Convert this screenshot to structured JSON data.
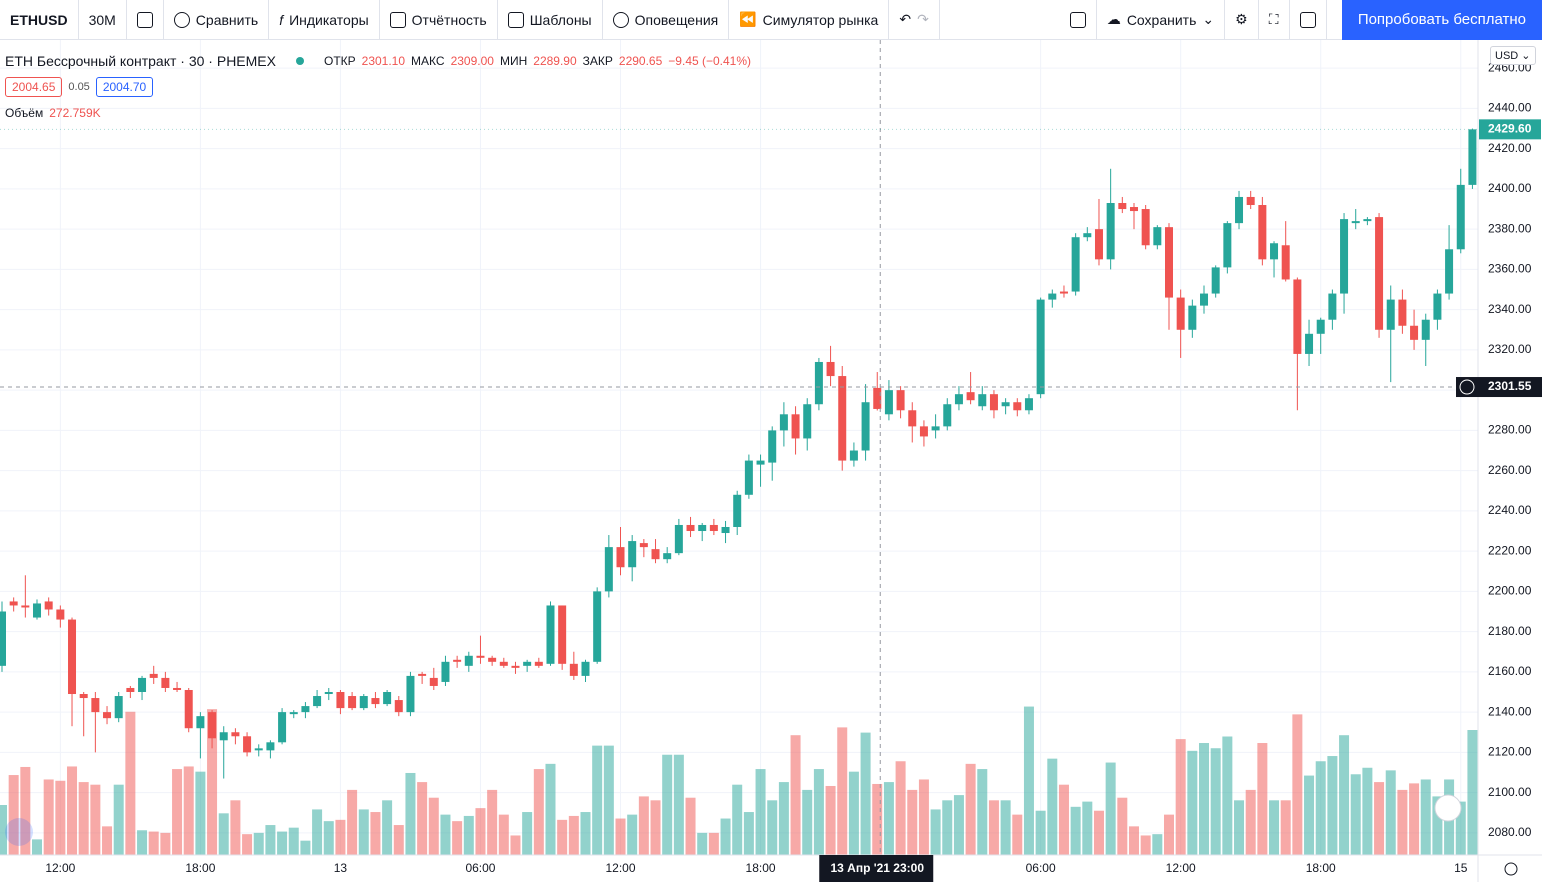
{
  "toolbar": {
    "symbol": "ETHUSD",
    "interval": "30М",
    "compare": "Сравнить",
    "indicators": "Индикаторы",
    "financials": "Отчётность",
    "templates": "Шаблоны",
    "alerts": "Оповещения",
    "replay": "Симулятор рынка",
    "save": "Сохранить",
    "trial": "Попробовать бесплатно"
  },
  "legend": {
    "title": "ETH Бессрочный контракт · 30 · PHEMEX",
    "open_label": "ОТКР",
    "open": "2301.10",
    "high_label": "МАКС",
    "high": "2309.00",
    "low_label": "МИН",
    "low": "2289.90",
    "close_label": "ЗАКР",
    "close": "2290.65",
    "change": "−9.45 (−0.41%)",
    "bid": "2004.65",
    "spread": "0.05",
    "ask": "2004.70",
    "volume_label": "Объём",
    "volume": "272.759K"
  },
  "chart": {
    "type": "candlestick",
    "currency": "USD",
    "up_color": "#26a69a",
    "down_color": "#ef5350",
    "grid": true,
    "ylim": [
      2069,
      2474
    ],
    "yticks": [
      {
        "value": 2080,
        "label": "2080.00"
      },
      {
        "value": 2100,
        "label": "2100.00"
      },
      {
        "value": 2120,
        "label": "2120.00"
      },
      {
        "value": 2140,
        "label": "2140.00"
      },
      {
        "value": 2160,
        "label": "2160.00"
      },
      {
        "value": 2180,
        "label": "2180.00"
      },
      {
        "value": 2200,
        "label": "2200.00"
      },
      {
        "value": 2220,
        "label": "2220.00"
      },
      {
        "value": 2240,
        "label": "2240.00"
      },
      {
        "value": 2260,
        "label": "2260.00"
      },
      {
        "value": 2280,
        "label": "2280.00"
      },
      {
        "value": 2300,
        "label": "2300.00"
      },
      {
        "value": 2320,
        "label": "2320.00"
      },
      {
        "value": 2340,
        "label": "2340.00"
      },
      {
        "value": 2360,
        "label": "2360.00"
      },
      {
        "value": 2380,
        "label": "2380.00"
      },
      {
        "value": 2400,
        "label": "2400.00"
      },
      {
        "value": 2420,
        "label": "2420.00"
      },
      {
        "value": 2440,
        "label": "2440.00"
      },
      {
        "value": 2460,
        "label": "2460.00"
      }
    ],
    "last_price_label": "2429.60",
    "crosshair_price": {
      "value": 2301.55,
      "label": "2301.55"
    },
    "crosshair_time": "13 Апр '21  23:00",
    "x_labels": [
      null,
      null,
      null,
      null,
      null,
      "12:00",
      null,
      null,
      null,
      null,
      null,
      null,
      null,
      null,
      null,
      null,
      null,
      "18:00",
      null,
      null,
      null,
      null,
      null,
      null,
      null,
      null,
      null,
      null,
      null,
      "13",
      null,
      null,
      null,
      null,
      null,
      null,
      null,
      null,
      null,
      null,
      null,
      "06:00",
      null,
      null,
      null,
      null,
      null,
      null,
      null,
      null,
      null,
      null,
      null,
      "12:00",
      null,
      null,
      null,
      null,
      null,
      null,
      null,
      null,
      null,
      null,
      null,
      "18:00",
      null,
      null,
      null,
      null,
      null,
      null,
      null,
      null,
      null,
      null,
      null,
      null,
      null,
      null,
      null,
      null,
      null,
      null,
      null,
      null,
      null,
      null,
      null,
      "06:00",
      null,
      null,
      null,
      null,
      null,
      null,
      null,
      null,
      null,
      null,
      null,
      "12:00",
      null,
      null,
      null,
      null,
      null,
      null,
      null,
      null,
      null,
      null,
      null,
      "18:00",
      null,
      null,
      null,
      null,
      null,
      null,
      null,
      null,
      null,
      null,
      null,
      "15",
      null
    ],
    "candles": [
      [
        2163,
        2195,
        2160,
        2190
      ],
      [
        2195,
        2197,
        2190,
        2193
      ],
      [
        2193,
        2208,
        2187,
        2192
      ],
      [
        2187,
        2196,
        2186,
        2194
      ],
      [
        2195,
        2197,
        2188,
        2191
      ],
      [
        2191,
        2193,
        2182,
        2186
      ],
      [
        2186,
        2187,
        2133,
        2149
      ],
      [
        2149,
        2150,
        2128,
        2147
      ],
      [
        2147,
        2150,
        2120,
        2140
      ],
      [
        2140,
        2143,
        2134,
        2137
      ],
      [
        2137,
        2150,
        2135,
        2148
      ],
      [
        2152,
        2153,
        2147,
        2150
      ],
      [
        2150,
        2158,
        2146,
        2157
      ],
      [
        2159,
        2163,
        2154,
        2157
      ],
      [
        2157,
        2160,
        2150,
        2152
      ],
      [
        2152,
        2155,
        2150,
        2151
      ],
      [
        2151,
        2152,
        2130,
        2132
      ],
      [
        2132,
        2140,
        2117,
        2138
      ],
      [
        2140,
        2141,
        2122,
        2127
      ],
      [
        2126,
        2133,
        2107,
        2130
      ],
      [
        2130,
        2132,
        2124,
        2128
      ],
      [
        2128,
        2130,
        2118,
        2120
      ],
      [
        2121,
        2124,
        2118,
        2122
      ],
      [
        2121,
        2126,
        2117,
        2125
      ],
      [
        2125,
        2142,
        2124,
        2140
      ],
      [
        2139,
        2141,
        2137,
        2140
      ],
      [
        2140,
        2145,
        2137,
        2143
      ],
      [
        2143,
        2151,
        2142,
        2148
      ],
      [
        2149,
        2152,
        2146,
        2150
      ],
      [
        2150,
        2151,
        2139,
        2142
      ],
      [
        2148,
        2150,
        2141,
        2142
      ],
      [
        2142,
        2149,
        2141,
        2148
      ],
      [
        2147,
        2150,
        2142,
        2144
      ],
      [
        2144,
        2151,
        2143,
        2150
      ],
      [
        2146,
        2148,
        2138,
        2140
      ],
      [
        2140,
        2160,
        2138,
        2158
      ],
      [
        2159,
        2160,
        2154,
        2158
      ],
      [
        2157,
        2162,
        2151,
        2153
      ],
      [
        2155,
        2168,
        2153,
        2165
      ],
      [
        2166,
        2168,
        2162,
        2165
      ],
      [
        2163,
        2170,
        2160,
        2168
      ],
      [
        2168,
        2178,
        2164,
        2167
      ],
      [
        2167,
        2168,
        2163,
        2165
      ],
      [
        2165,
        2167,
        2162,
        2163
      ],
      [
        2163,
        2165,
        2159,
        2162
      ],
      [
        2163,
        2166,
        2160,
        2165
      ],
      [
        2165,
        2167,
        2162,
        2163
      ],
      [
        2164,
        2195,
        2163,
        2193
      ],
      [
        2193,
        2193,
        2161,
        2164
      ],
      [
        2164,
        2170,
        2156,
        2158
      ],
      [
        2158,
        2166,
        2155,
        2165
      ],
      [
        2165,
        2202,
        2164,
        2200
      ],
      [
        2200,
        2228,
        2197,
        2222
      ],
      [
        2222,
        2232,
        2208,
        2212
      ],
      [
        2212,
        2228,
        2205,
        2225
      ],
      [
        2224,
        2226,
        2217,
        2222
      ],
      [
        2221,
        2226,
        2214,
        2216
      ],
      [
        2216,
        2222,
        2214,
        2219
      ],
      [
        2219,
        2236,
        2218,
        2233
      ],
      [
        2233,
        2237,
        2227,
        2230
      ],
      [
        2230,
        2234,
        2225,
        2233
      ],
      [
        2233,
        2236,
        2228,
        2230
      ],
      [
        2229,
        2235,
        2224,
        2232
      ],
      [
        2232,
        2250,
        2228,
        2248
      ],
      [
        2248,
        2268,
        2246,
        2265
      ],
      [
        2263,
        2268,
        2252,
        2265
      ],
      [
        2264,
        2282,
        2255,
        2280
      ],
      [
        2280,
        2294,
        2272,
        2288
      ],
      [
        2288,
        2292,
        2268,
        2276
      ],
      [
        2276,
        2296,
        2270,
        2293
      ],
      [
        2293,
        2316,
        2290,
        2314
      ],
      [
        2314,
        2322,
        2302,
        2307
      ],
      [
        2307,
        2312,
        2260,
        2265
      ],
      [
        2265,
        2274,
        2262,
        2270
      ],
      [
        2270,
        2303,
        2265,
        2294
      ],
      [
        2301.1,
        2309,
        2289.9,
        2290.65
      ],
      [
        2288,
        2305,
        2285,
        2300
      ],
      [
        2300,
        2302,
        2286,
        2290
      ],
      [
        2290,
        2294,
        2274,
        2282
      ],
      [
        2282,
        2285,
        2272,
        2277
      ],
      [
        2280,
        2288,
        2276,
        2282
      ],
      [
        2282,
        2296,
        2280,
        2293
      ],
      [
        2293,
        2302,
        2290,
        2298
      ],
      [
        2299,
        2309,
        2293,
        2295
      ],
      [
        2292,
        2302,
        2290,
        2298
      ],
      [
        2298,
        2300,
        2286,
        2290
      ],
      [
        2292,
        2296,
        2288,
        2294
      ],
      [
        2294,
        2296,
        2287,
        2290
      ],
      [
        2290,
        2298,
        2288,
        2296
      ],
      [
        2298,
        2346,
        2296,
        2345
      ],
      [
        2345,
        2350,
        2341,
        2348
      ],
      [
        2349,
        2352,
        2346,
        2348
      ],
      [
        2349,
        2378,
        2347,
        2376
      ],
      [
        2376,
        2381,
        2374,
        2378
      ],
      [
        2380,
        2395,
        2362,
        2365
      ],
      [
        2365,
        2410,
        2360,
        2393
      ],
      [
        2393,
        2396,
        2388,
        2390
      ],
      [
        2391,
        2393,
        2380,
        2389
      ],
      [
        2390,
        2392,
        2370,
        2372
      ],
      [
        2372,
        2382,
        2370,
        2381
      ],
      [
        2381,
        2383,
        2330,
        2346
      ],
      [
        2346,
        2350,
        2316,
        2330
      ],
      [
        2330,
        2345,
        2326,
        2342
      ],
      [
        2342,
        2352,
        2338,
        2348
      ],
      [
        2348,
        2362,
        2346,
        2361
      ],
      [
        2361,
        2384,
        2358,
        2383
      ],
      [
        2383,
        2399,
        2380,
        2396
      ],
      [
        2396,
        2399,
        2390,
        2392
      ],
      [
        2392,
        2396,
        2362,
        2365
      ],
      [
        2365,
        2374,
        2356,
        2373
      ],
      [
        2372,
        2384,
        2354,
        2355
      ],
      [
        2355,
        2356,
        2290,
        2318
      ],
      [
        2318,
        2335,
        2312,
        2328
      ],
      [
        2328,
        2336,
        2318,
        2335
      ],
      [
        2335,
        2350,
        2330,
        2348
      ],
      [
        2348,
        2388,
        2338,
        2385
      ],
      [
        2383,
        2390,
        2380,
        2384
      ],
      [
        2384,
        2386,
        2382,
        2385
      ],
      [
        2386,
        2388,
        2326,
        2330
      ],
      [
        2330,
        2352,
        2304,
        2345
      ],
      [
        2345,
        2350,
        2328,
        2332
      ],
      [
        2332,
        2340,
        2320,
        2325
      ],
      [
        2325,
        2338,
        2312,
        2335
      ],
      [
        2335,
        2350,
        2330,
        2348
      ],
      [
        2348,
        2382,
        2345,
        2370
      ],
      [
        2370,
        2410,
        2368,
        2402
      ],
      [
        2402,
        2430,
        2400,
        2429.6
      ]
    ],
    "volumes": [
      192,
      307,
      338,
      60,
      290,
      285,
      340,
      280,
      270,
      110,
      270,
      550,
      95,
      90,
      85,
      330,
      340,
      320,
      560,
      160,
      210,
      80,
      85,
      115,
      90,
      105,
      55,
      175,
      130,
      135,
      250,
      175,
      165,
      210,
      115,
      315,
      280,
      220,
      155,
      130,
      150,
      180,
      250,
      155,
      75,
      165,
      330,
      350,
      135,
      150,
      165,
      420,
      420,
      140,
      155,
      225,
      210,
      385,
      385,
      220,
      85,
      85,
      140,
      270,
      165,
      330,
      210,
      280,
      460,
      250,
      330,
      265,
      490,
      320,
      470,
      272.759,
      280,
      360,
      250,
      290,
      175,
      210,
      230,
      350,
      330,
      210,
      210,
      155,
      570,
      170,
      370,
      270,
      185,
      205,
      170,
      355,
      220,
      110,
      75,
      80,
      155,
      445,
      400,
      430,
      410,
      455,
      210,
      250,
      430,
      210,
      210,
      540,
      305,
      360,
      380,
      460,
      310,
      335,
      280,
      325,
      250,
      275,
      290,
      225,
      290,
      205,
      480
    ]
  }
}
